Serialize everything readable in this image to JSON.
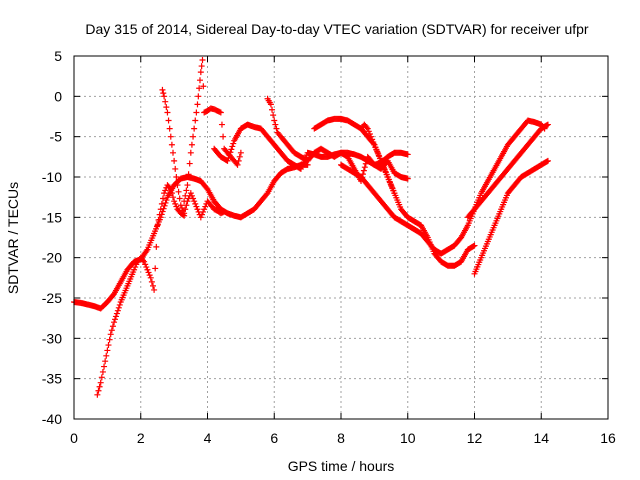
{
  "chart_data": {
    "type": "scatter",
    "title": "Day 315 of 2014, Sidereal Day-to-day VTEC variation (SDTVAR) for receiver ufpr",
    "xlabel": "GPS time / hours",
    "ylabel": "SDTVAR / TECUs",
    "xlim": [
      0,
      16
    ],
    "ylim": [
      -40,
      5
    ],
    "xticks": [
      "0",
      "2",
      "4",
      "6",
      "8",
      "10",
      "12",
      "14",
      "16"
    ],
    "yticks": [
      "5",
      "0",
      "-5",
      "-10",
      "-15",
      "-20",
      "-25",
      "-30",
      "-35",
      "-40"
    ],
    "grid": true,
    "marker": "+",
    "colors": {
      "series": "#ff0000"
    },
    "series": [
      {
        "x": [
          0.0,
          0.2,
          0.4,
          0.6,
          0.8,
          1.0,
          1.2,
          1.4,
          1.6,
          1.8,
          2.0,
          2.2,
          2.4,
          2.6,
          2.8,
          3.0,
          3.2,
          3.4,
          3.6,
          3.8,
          4.0,
          4.2,
          4.4,
          4.6,
          4.8,
          5.0,
          5.2,
          5.4,
          5.6,
          5.8,
          6.0,
          6.2,
          6.4,
          6.6,
          6.8,
          7.0
        ],
        "y": [
          -25.5,
          -25.6,
          -25.8,
          -26.0,
          -26.3,
          -25.5,
          -24.5,
          -23.0,
          -21.5,
          -20.5,
          -20.2,
          -19.0,
          -17.0,
          -15.0,
          -12.5,
          -11.0,
          -10.2,
          -10.0,
          -10.2,
          -10.5,
          -11.5,
          -13.0,
          -14.0,
          -14.5,
          -14.8,
          -15.0,
          -14.5,
          -14.0,
          -13.0,
          -12.0,
          -10.5,
          -9.5,
          -9.0,
          -8.8,
          -8.5,
          -8.5
        ]
      },
      {
        "x": [
          0.7,
          0.8,
          0.9,
          1.0,
          1.1,
          1.2,
          1.4,
          1.6,
          1.8,
          1.9,
          2.0,
          2.1,
          2.2,
          2.3,
          2.4,
          2.5,
          2.6,
          2.7,
          2.8,
          2.9,
          3.0,
          3.1,
          3.2,
          3.3
        ],
        "y": [
          -37.0,
          -35.5,
          -33.5,
          -31.5,
          -29.5,
          -28.0,
          -25.5,
          -23.5,
          -21.5,
          -20.5,
          -20.0,
          -20.5,
          -21.5,
          -22.5,
          -24.0,
          -16.0,
          -14.0,
          -12.0,
          -11.0,
          -11.5,
          -13.0,
          -14.0,
          -14.5,
          -14.8
        ]
      },
      {
        "x": [
          2.65,
          2.7,
          2.8,
          2.9,
          3.0,
          3.1,
          3.2,
          3.3,
          3.4,
          3.5,
          3.6,
          3.7,
          3.8,
          3.9,
          4.0,
          4.1,
          4.2,
          4.3,
          4.4,
          4.5
        ],
        "y": [
          0.8,
          0.0,
          -2.0,
          -5.0,
          -8.0,
          -11.0,
          -13.5,
          -14.5,
          -13.0,
          -12.0,
          -13.0,
          -14.0,
          -15.0,
          -14.0,
          -13.0,
          -13.5,
          -14.0,
          -14.2,
          -14.5,
          -14.3
        ]
      },
      {
        "x": [
          3.3,
          3.4,
          3.5,
          3.6,
          3.7,
          3.75,
          3.8,
          3.85,
          3.9,
          4.0,
          4.1,
          4.2,
          4.3,
          4.4,
          4.5,
          4.6,
          4.7,
          4.8,
          4.9,
          5.0
        ],
        "y": [
          -13.0,
          -11.0,
          -7.0,
          -4.0,
          -1.0,
          1.0,
          3.0,
          4.5,
          -2.0,
          -1.8,
          -1.5,
          -1.6,
          -1.8,
          -2.0,
          -6.5,
          -7.0,
          -7.5,
          -8.0,
          -8.5,
          -7.0
        ]
      },
      {
        "x": [
          4.2,
          4.4,
          4.6,
          4.8,
          5.0,
          5.2,
          5.4,
          5.6,
          5.8,
          6.0,
          6.2,
          6.4,
          6.6,
          6.8,
          7.0,
          7.2,
          7.4,
          7.6,
          7.8,
          8.0,
          8.2,
          8.4,
          8.6,
          8.8,
          9.0,
          9.2,
          9.4,
          9.6,
          9.8,
          10.0
        ],
        "y": [
          -6.5,
          -7.5,
          -8.0,
          -5.5,
          -4.0,
          -3.5,
          -3.8,
          -4.0,
          -5.0,
          -6.0,
          -7.0,
          -8.0,
          -8.5,
          -9.0,
          -7.0,
          -7.2,
          -7.5,
          -7.5,
          -7.2,
          -7.0,
          -7.0,
          -7.2,
          -7.5,
          -8.0,
          -8.5,
          -8.2,
          -7.5,
          -7.0,
          -7.0,
          -7.2
        ]
      },
      {
        "x": [
          5.8,
          5.9,
          6.0,
          6.1,
          6.2,
          6.4,
          6.6,
          6.8,
          7.0,
          7.2,
          7.4,
          7.6,
          7.8,
          8.0,
          8.2,
          8.4,
          8.6,
          8.8,
          9.0,
          9.2,
          9.4,
          9.6,
          9.8,
          10.0
        ],
        "y": [
          -0.3,
          -1.0,
          -3.0,
          -4.5,
          -5.0,
          -6.0,
          -7.0,
          -7.5,
          -8.0,
          -7.0,
          -6.5,
          -7.0,
          -7.5,
          -7.0,
          -7.5,
          -9.0,
          -10.5,
          -7.5,
          -8.5,
          -9.0,
          -8.0,
          -9.5,
          -10.0,
          -10.2
        ]
      },
      {
        "x": [
          7.2,
          7.4,
          7.6,
          7.8,
          8.0,
          8.2,
          8.4,
          8.6,
          8.8,
          9.0,
          9.2,
          9.4,
          9.6,
          9.8,
          10.0,
          10.2,
          10.4,
          10.6,
          10.8,
          11.0,
          11.2,
          11.4,
          11.6,
          11.8,
          12.0
        ],
        "y": [
          -4.0,
          -3.5,
          -3.0,
          -2.8,
          -2.8,
          -3.0,
          -3.5,
          -4.0,
          -5.0,
          -6.0,
          -8.0,
          -10.0,
          -12.0,
          -14.0,
          -15.0,
          -15.5,
          -16.0,
          -17.5,
          -19.5,
          -20.5,
          -21.0,
          -21.0,
          -20.5,
          -19.0,
          -18.5
        ]
      },
      {
        "x": [
          8.0,
          8.2,
          8.4,
          8.6,
          8.8,
          9.0,
          9.2,
          9.4,
          9.6,
          9.8,
          10.0,
          10.2,
          10.4,
          10.6,
          10.8,
          11.0,
          11.2,
          11.4,
          11.6,
          11.8,
          12.0,
          12.2,
          12.4,
          12.6,
          12.8,
          13.0,
          13.2,
          13.4,
          13.6,
          13.8,
          14.0,
          14.1
        ],
        "y": [
          -8.5,
          -9.0,
          -9.5,
          -10.0,
          -11.0,
          -12.0,
          -13.0,
          -14.0,
          -15.0,
          -15.5,
          -16.0,
          -16.5,
          -17.0,
          -18.0,
          -19.0,
          -19.5,
          -19.0,
          -18.5,
          -17.5,
          -16.0,
          -14.0,
          -12.0,
          -10.5,
          -9.0,
          -7.5,
          -6.0,
          -5.0,
          -4.0,
          -3.0,
          -3.2,
          -3.5,
          -4.0
        ]
      },
      {
        "x": [
          8.6,
          8.7,
          8.8,
          8.9,
          9.0,
          9.1,
          9.2,
          9.3,
          9.4,
          9.5,
          9.6
        ],
        "y": [
          -4.0,
          -3.5,
          -4.0,
          -5.0,
          -6.0,
          -7.0,
          -8.0,
          -9.0,
          -10.0,
          -11.0,
          -12.0
        ]
      },
      {
        "x": [
          12.0,
          12.2,
          12.4,
          12.6,
          12.8,
          13.0,
          13.2,
          13.4,
          13.6,
          13.8,
          14.0,
          14.2
        ],
        "y": [
          -22.0,
          -20.0,
          -18.0,
          -16.0,
          -14.0,
          -12.0,
          -11.0,
          -10.0,
          -9.5,
          -9.0,
          -8.5,
          -8.0
        ]
      },
      {
        "x": [
          11.8,
          12.0,
          12.2,
          12.4,
          12.6,
          12.8,
          13.0,
          13.2,
          13.4,
          13.6,
          13.8,
          14.0,
          14.2
        ],
        "y": [
          -15.0,
          -14.0,
          -13.0,
          -12.0,
          -11.0,
          -10.0,
          -9.0,
          -8.0,
          -7.0,
          -6.0,
          -5.0,
          -4.0,
          -3.5
        ]
      }
    ]
  }
}
